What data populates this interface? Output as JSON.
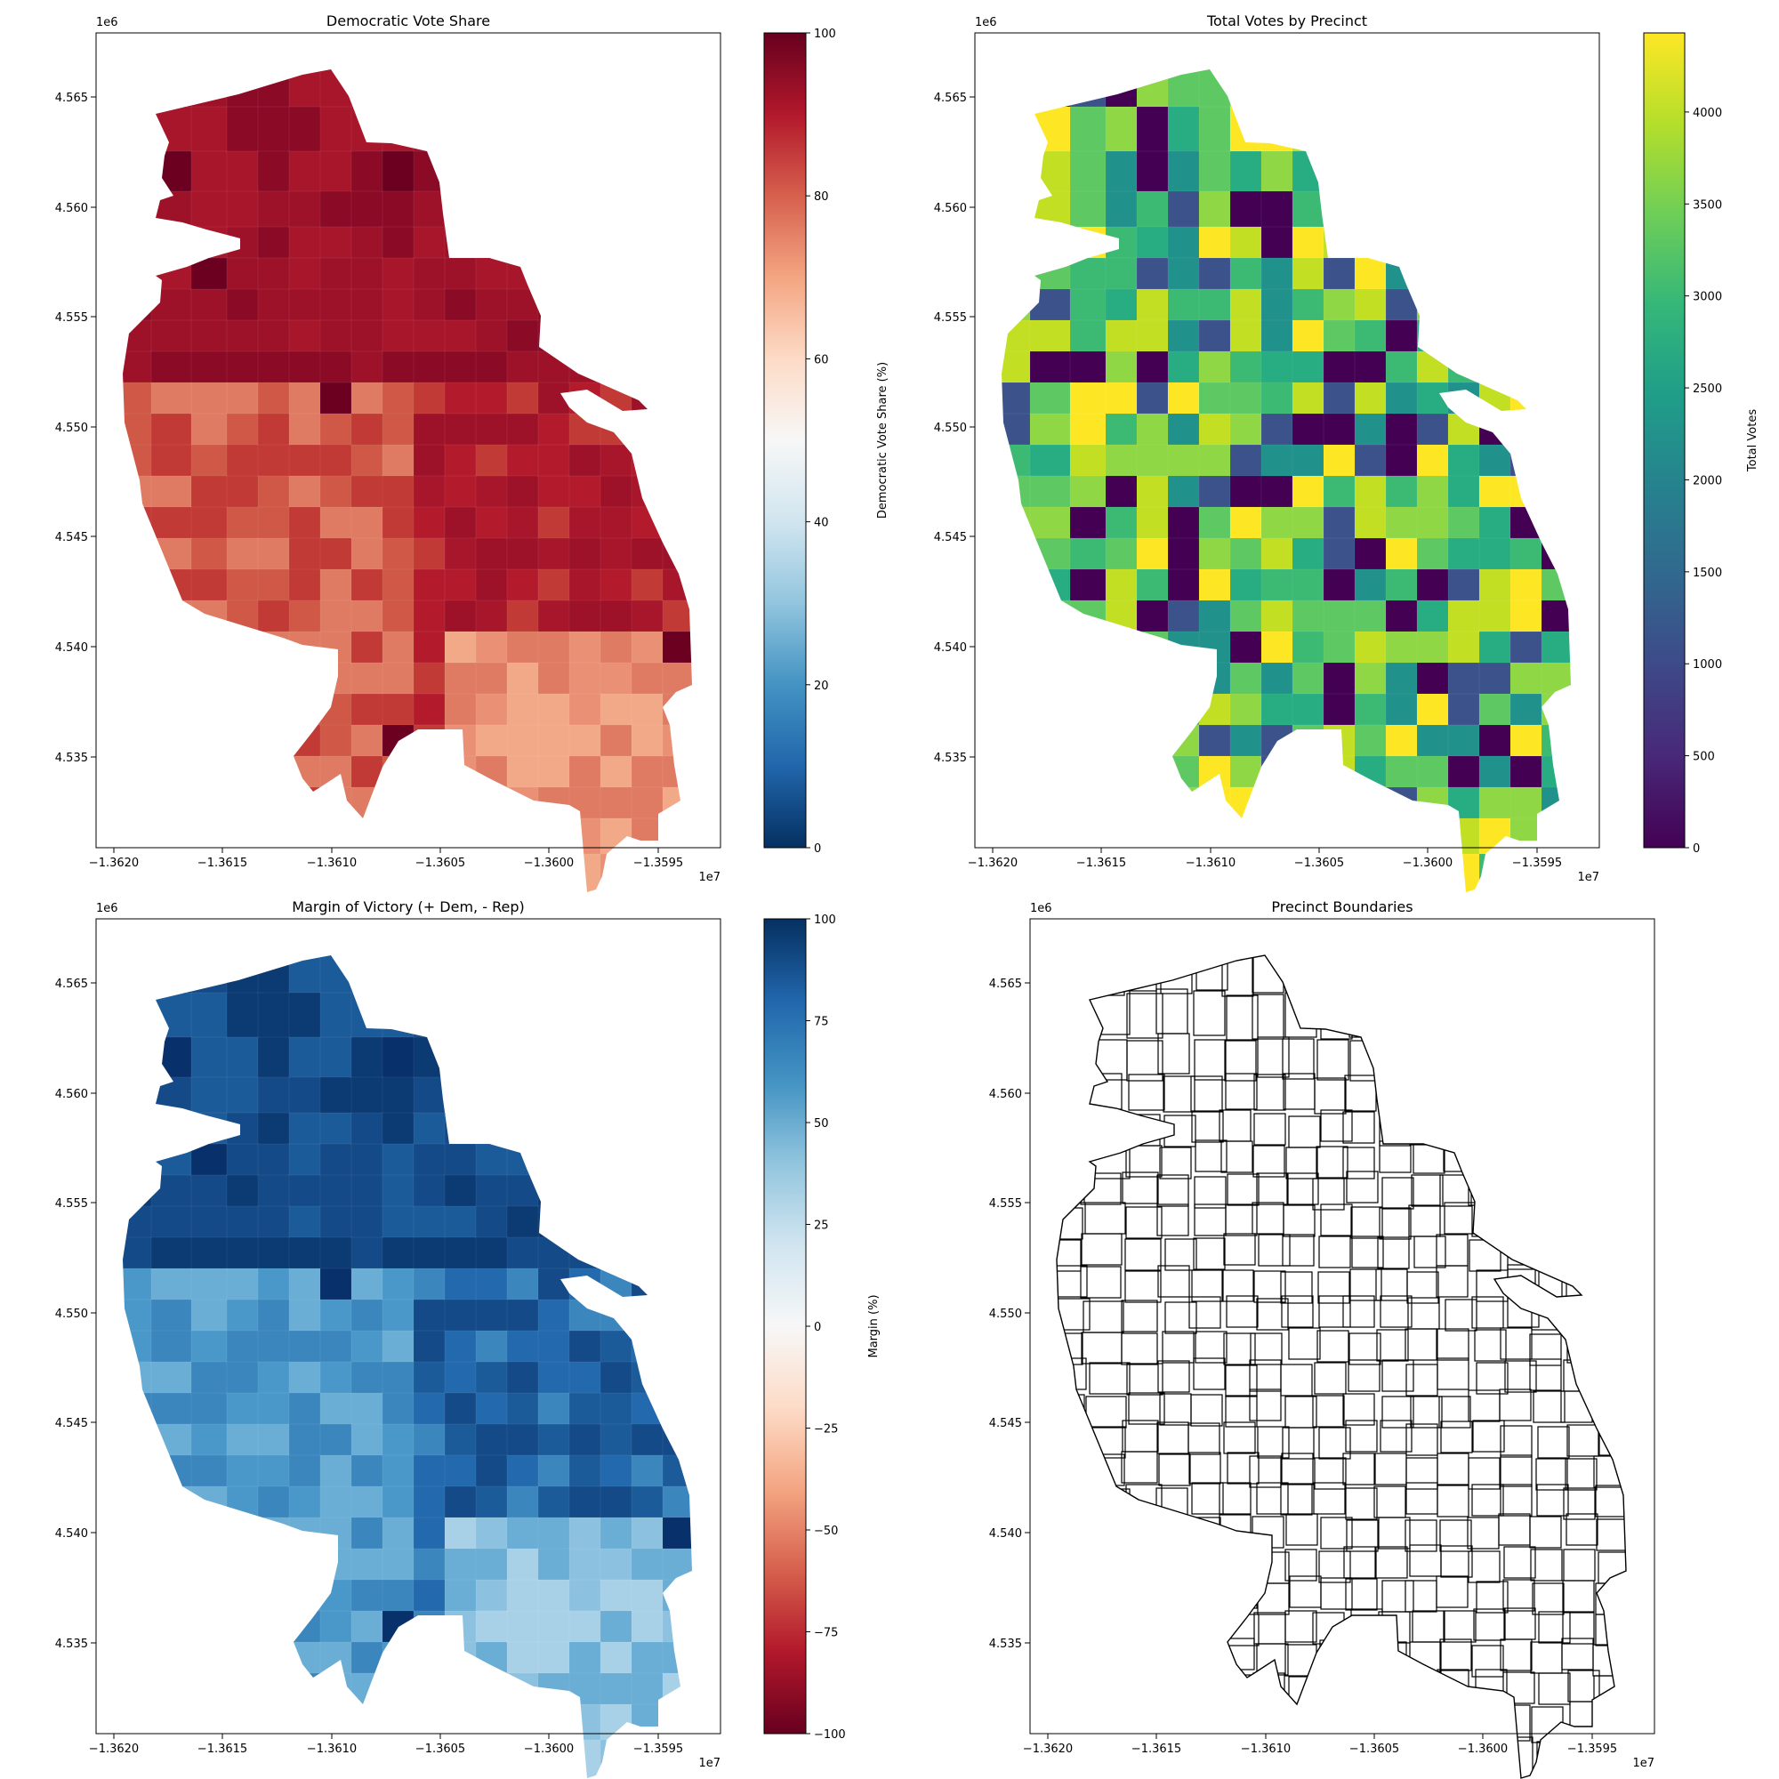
{
  "panels": [
    {
      "id": "dem-share",
      "title": "Democratic Vote Share",
      "x_offset_label": "1e7",
      "y_offset_label": "1e6",
      "x_ticks": [
        "−1.3620",
        "−1.3615",
        "−1.3610",
        "−1.3605",
        "−1.3600",
        "−1.3595"
      ],
      "y_ticks": [
        "4.535",
        "4.540",
        "4.545",
        "4.550",
        "4.555",
        "4.560",
        "4.565"
      ],
      "fill_scheme": "red",
      "colorbar": {
        "label": "Democratic Vote Share (%)",
        "ticks": [
          "0",
          "20",
          "40",
          "60",
          "80",
          "100"
        ],
        "colors": [
          "#053061",
          "#2166ac",
          "#4393c3",
          "#92c5de",
          "#d1e5f0",
          "#f7f7f7",
          "#fddbc7",
          "#f4a582",
          "#d6604d",
          "#b2182b",
          "#67001f"
        ]
      }
    },
    {
      "id": "total-votes",
      "title": "Total Votes by Precinct",
      "x_offset_label": "1e7",
      "y_offset_label": "1e6",
      "x_ticks": [
        "−1.3620",
        "−1.3615",
        "−1.3610",
        "−1.3605",
        "−1.3600",
        "−1.3595"
      ],
      "y_ticks": [
        "4.535",
        "4.540",
        "4.545",
        "4.550",
        "4.555",
        "4.560",
        "4.565"
      ],
      "fill_scheme": "viridis",
      "colorbar": {
        "label": "Total Votes",
        "ticks": [
          "0",
          "500",
          "1000",
          "1500",
          "2000",
          "2500",
          "3000",
          "3500",
          "4000"
        ],
        "colors": [
          "#440154",
          "#482878",
          "#3e4989",
          "#31688e",
          "#26828e",
          "#1f9e89",
          "#35b779",
          "#6ece58",
          "#b5de2b",
          "#fde725"
        ]
      }
    },
    {
      "id": "margin",
      "title": "Margin of Victory (+ Dem, - Rep)",
      "x_offset_label": "1e7",
      "y_offset_label": "1e6",
      "x_ticks": [
        "−1.3620",
        "−1.3615",
        "−1.3610",
        "−1.3605",
        "−1.3600",
        "−1.3595"
      ],
      "y_ticks": [
        "4.535",
        "4.540",
        "4.545",
        "4.550",
        "4.555",
        "4.560",
        "4.565"
      ],
      "fill_scheme": "blue",
      "colorbar": {
        "label": "Margin (%)",
        "ticks": [
          "−100",
          "−75",
          "−50",
          "−25",
          "0",
          "25",
          "50",
          "75",
          "100"
        ],
        "colors": [
          "#67001f",
          "#b2182b",
          "#d6604d",
          "#f4a582",
          "#fddbc7",
          "#f7f7f7",
          "#d1e5f0",
          "#92c5de",
          "#4393c3",
          "#2166ac",
          "#053061"
        ]
      }
    },
    {
      "id": "boundaries",
      "title": "Precinct Boundaries",
      "x_offset_label": "1e7",
      "y_offset_label": "1e6",
      "x_ticks": [
        "−1.3620",
        "−1.3615",
        "−1.3610",
        "−1.3605",
        "−1.3600",
        "−1.3595"
      ],
      "y_ticks": [
        "4.535",
        "4.540",
        "4.545",
        "4.550",
        "4.555",
        "4.560",
        "4.565"
      ],
      "fill_scheme": "outline"
    }
  ],
  "palettes": {
    "red": [
      "#8b0a26",
      "#9d1228",
      "#a8162b",
      "#b31b2d",
      "#c23a35",
      "#cf5846",
      "#e07b63",
      "#ea9175",
      "#f2a987",
      "#6b0020"
    ],
    "viridis": [
      "#440154",
      "#3b528b",
      "#21918c",
      "#27ad81",
      "#3cba74",
      "#5ec962",
      "#8fd744",
      "#c2df23",
      "#fde725"
    ],
    "blue": [
      "#0c3a73",
      "#134a87",
      "#1b5b99",
      "#2369ad",
      "#3c86be",
      "#4a98c9",
      "#6aaed6",
      "#8cc2e0",
      "#a8d1e7",
      "#08306b"
    ]
  }
}
